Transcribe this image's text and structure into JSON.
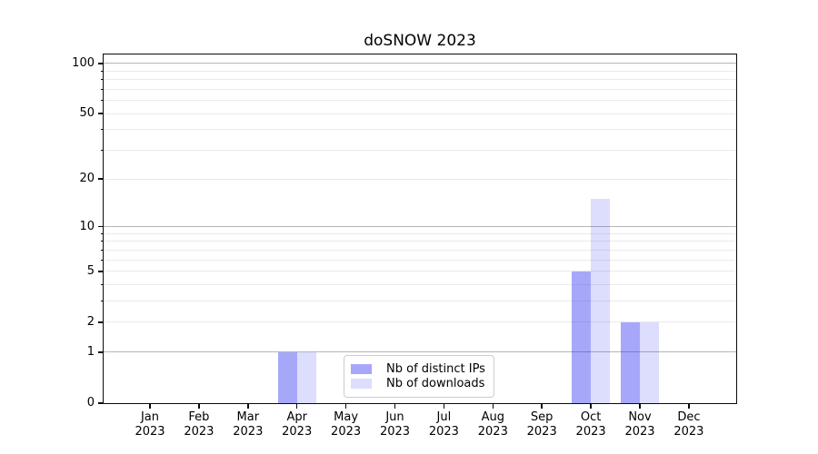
{
  "title": "doSNOW 2023",
  "chart_data": {
    "type": "bar",
    "title": "doSNOW 2023",
    "yscale": "log1p",
    "ylim": [
      0,
      113
    ],
    "yticks": [
      0,
      1,
      2,
      5,
      10,
      20,
      50,
      100
    ],
    "x": {
      "months": [
        "Jan",
        "Feb",
        "Mar",
        "Apr",
        "May",
        "Jun",
        "Jul",
        "Aug",
        "Sep",
        "Oct",
        "Nov",
        "Dec"
      ],
      "year": "2023"
    },
    "series": [
      {
        "name": "Nb of distinct IPs",
        "color": "rgba(45,45,242,0.42)",
        "values": [
          0,
          0,
          0,
          1,
          0,
          0,
          0,
          0,
          0,
          5,
          2,
          0
        ]
      },
      {
        "name": "Nb of downloads",
        "color": "rgba(45,45,242,0.16)",
        "values": [
          0,
          0,
          0,
          1,
          0,
          0,
          0,
          0,
          0,
          15,
          2,
          0
        ]
      }
    ],
    "grid": {
      "major": [
        1,
        10,
        100
      ],
      "minor": [
        2,
        3,
        4,
        5,
        6,
        7,
        8,
        9,
        20,
        30,
        40,
        50,
        60,
        70,
        80,
        90
      ],
      "major_color": "#b5b5b5",
      "minor_color": "#eaeaea"
    },
    "colors": {
      "background": "#ffffff",
      "axis": "#0a0a0a",
      "legend_border": "#cccccc"
    },
    "legend_position": "lower center inside axes"
  }
}
